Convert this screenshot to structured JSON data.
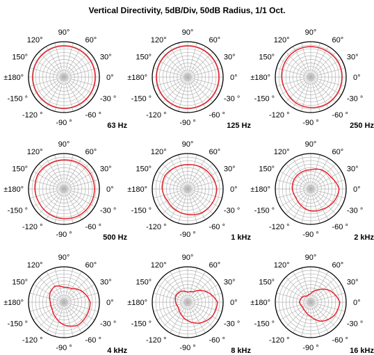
{
  "chart_data": {
    "type": "polar",
    "title": "Vertical Directivity, 5dB/Div, 50dB Radius, 1/1 Oct.",
    "rlim": [
      0,
      50
    ],
    "r_step": 5,
    "angle_step_deg": 15,
    "grid": true,
    "curve_color": "#e8202a",
    "grid_color": "#b3b3b3",
    "angle_tick_labels": [
      "90°",
      "60°",
      "30°",
      "0°",
      "-30 °",
      "-60 °",
      "-90 °",
      "-120 °",
      "-150 °",
      "±180°",
      "150°",
      "120°"
    ],
    "angle_sample_deg": [
      0,
      30,
      60,
      90,
      120,
      150,
      180,
      210,
      240,
      270,
      300,
      330
    ],
    "panels": [
      {
        "label": "63 Hz",
        "r": [
          44,
          44,
          44,
          44,
          44,
          44,
          44,
          44,
          44,
          44,
          44,
          44
        ]
      },
      {
        "label": "125 Hz",
        "r": [
          44,
          44,
          44,
          44,
          44,
          44,
          44,
          44,
          44,
          44,
          44,
          44
        ]
      },
      {
        "label": "250 Hz",
        "r": [
          44,
          44,
          43,
          43,
          43,
          42,
          41,
          40,
          42,
          43,
          44,
          44
        ]
      },
      {
        "label": "500 Hz",
        "r": [
          43,
          43,
          42,
          41,
          41,
          42,
          41,
          40,
          41,
          42,
          43,
          43
        ]
      },
      {
        "label": "1 kHz",
        "r": [
          41,
          38,
          36,
          34,
          35,
          37,
          36,
          33,
          34,
          36,
          39,
          40
        ]
      },
      {
        "label": "2 kHz",
        "r": [
          40,
          33,
          31,
          27,
          27,
          27,
          26,
          24,
          27,
          31,
          33,
          37
        ]
      },
      {
        "label": "4 kHz",
        "r": [
          37,
          30,
          22,
          21,
          26,
          23,
          19,
          19,
          24,
          32,
          38,
          37
        ]
      },
      {
        "label": "8 kHz",
        "r": [
          42,
          30,
          17,
          14,
          18,
          19,
          17,
          15,
          19,
          26,
          34,
          40
        ]
      },
      {
        "label": "16 kHz",
        "r": [
          41,
          32,
          20,
          12,
          10,
          14,
          16,
          13,
          15,
          20,
          31,
          38
        ]
      }
    ]
  }
}
